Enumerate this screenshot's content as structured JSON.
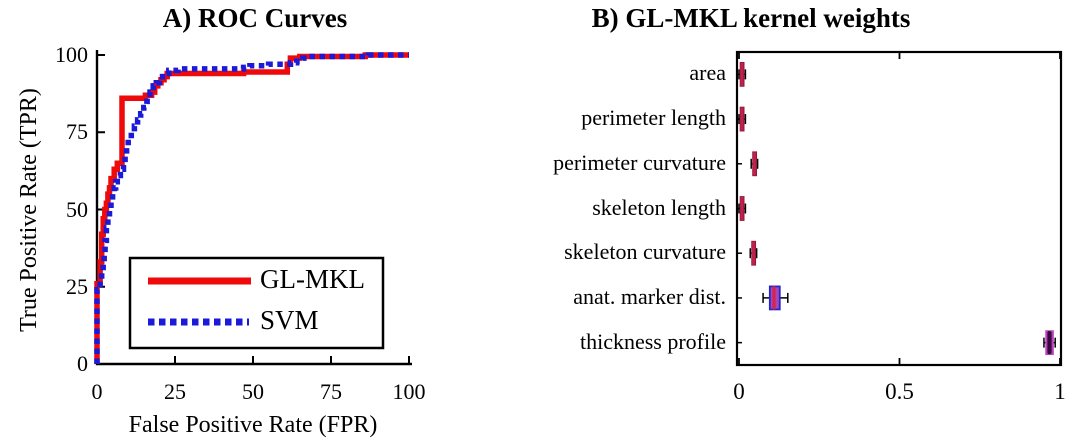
{
  "chart_data": [
    {
      "id": "roc",
      "type": "line",
      "title": "A) ROC Curves",
      "xlabel": "False Positive Rate (FPR)",
      "ylabel": "True Positive Rate (TPR)",
      "xlim": [
        0,
        100
      ],
      "ylim": [
        0,
        100
      ],
      "xticks": [
        "0",
        "25",
        "50",
        "75",
        "100"
      ],
      "yticks": [
        "0",
        "25",
        "50",
        "75",
        "100"
      ],
      "xtick_values": [
        0,
        25,
        50,
        75,
        100
      ],
      "ytick_values": [
        0,
        25,
        50,
        75,
        100
      ],
      "grid": false,
      "legend_position": "inside-lower-middle",
      "series": [
        {
          "name": "GL-MKL",
          "color": "#ee0a0a",
          "style": "solid",
          "points": [
            [
              0,
              0
            ],
            [
              0,
              26
            ],
            [
              1,
              26
            ],
            [
              1,
              33
            ],
            [
              1.5,
              33
            ],
            [
              1.5,
              42
            ],
            [
              2,
              42
            ],
            [
              2,
              47
            ],
            [
              2.5,
              47
            ],
            [
              2.5,
              50
            ],
            [
              3,
              50
            ],
            [
              3,
              52
            ],
            [
              3.5,
              52
            ],
            [
              3.5,
              55
            ],
            [
              4,
              55
            ],
            [
              4,
              57
            ],
            [
              4.5,
              57
            ],
            [
              4.5,
              60
            ],
            [
              5.5,
              60
            ],
            [
              5.5,
              63
            ],
            [
              6.5,
              63
            ],
            [
              6.5,
              65
            ],
            [
              8,
              65
            ],
            [
              8,
              86
            ],
            [
              15.5,
              86
            ],
            [
              15.5,
              87
            ],
            [
              17.5,
              87
            ],
            [
              17.5,
              88
            ],
            [
              18.5,
              88
            ],
            [
              18.5,
              90
            ],
            [
              19.5,
              90
            ],
            [
              19.5,
              91
            ],
            [
              20.5,
              91
            ],
            [
              20.5,
              92
            ],
            [
              21.5,
              92
            ],
            [
              21.5,
              93
            ],
            [
              22.5,
              93
            ],
            [
              22.5,
              94
            ],
            [
              47,
              94
            ],
            [
              47,
              94.5
            ],
            [
              61,
              94.5
            ],
            [
              61,
              97
            ],
            [
              62,
              97
            ],
            [
              62,
              99
            ],
            [
              65,
              99
            ],
            [
              65,
              99.5
            ],
            [
              86,
              99.5
            ],
            [
              86,
              100
            ],
            [
              100,
              100
            ]
          ]
        },
        {
          "name": "SVM",
          "color": "#1a1ad8",
          "style": "dotted",
          "points": [
            [
              0,
              0
            ],
            [
              0,
              24
            ],
            [
              1,
              24
            ],
            [
              1,
              27
            ],
            [
              1.5,
              27
            ],
            [
              1.5,
              30
            ],
            [
              2,
              30
            ],
            [
              2,
              33
            ],
            [
              2.3,
              33
            ],
            [
              2.3,
              36
            ],
            [
              2.6,
              36
            ],
            [
              2.6,
              40
            ],
            [
              3,
              40
            ],
            [
              3,
              44
            ],
            [
              3.5,
              44
            ],
            [
              3.5,
              47
            ],
            [
              4,
              47
            ],
            [
              4,
              50
            ],
            [
              4.5,
              50
            ],
            [
              4.5,
              53
            ],
            [
              5,
              53
            ],
            [
              5,
              55
            ],
            [
              5.5,
              55
            ],
            [
              5.5,
              57
            ],
            [
              6,
              57
            ],
            [
              6,
              59
            ],
            [
              6.5,
              59
            ],
            [
              6.5,
              61
            ],
            [
              7.5,
              61
            ],
            [
              7.5,
              63
            ],
            [
              8.5,
              63
            ],
            [
              8.5,
              65
            ],
            [
              9,
              65
            ],
            [
              9,
              68
            ],
            [
              9.5,
              68
            ],
            [
              9.5,
              70
            ],
            [
              10,
              70
            ],
            [
              10,
              73
            ],
            [
              11,
              73
            ],
            [
              11,
              75
            ],
            [
              12,
              75
            ],
            [
              12,
              77
            ],
            [
              13,
              77
            ],
            [
              13,
              79
            ],
            [
              14,
              79
            ],
            [
              14,
              81
            ],
            [
              15,
              81
            ],
            [
              15,
              83
            ],
            [
              16,
              83
            ],
            [
              16,
              85
            ],
            [
              17,
              85
            ],
            [
              17,
              88
            ],
            [
              18,
              88
            ],
            [
              18,
              90
            ],
            [
              19,
              90
            ],
            [
              19,
              91
            ],
            [
              20,
              91
            ],
            [
              20,
              92
            ],
            [
              21,
              92
            ],
            [
              21,
              93
            ],
            [
              22,
              93
            ],
            [
              22,
              94
            ],
            [
              23,
              94
            ],
            [
              23,
              95
            ],
            [
              26,
              95
            ],
            [
              26,
              95.5
            ],
            [
              47,
              95.5
            ],
            [
              47,
              96
            ],
            [
              49,
              96
            ],
            [
              49,
              96.5
            ],
            [
              55,
              96.5
            ],
            [
              55,
              97
            ],
            [
              62,
              97
            ],
            [
              62,
              97.5
            ],
            [
              64,
              97.5
            ],
            [
              64,
              98
            ],
            [
              66,
              98
            ],
            [
              66,
              99
            ],
            [
              68,
              99
            ],
            [
              68,
              99.5
            ],
            [
              87,
              99.5
            ],
            [
              87,
              100
            ],
            [
              100,
              100
            ]
          ]
        }
      ]
    },
    {
      "id": "kernel-weights",
      "type": "boxplot-horizontal",
      "title": "B) GL-MKL kernel weights",
      "xlabel": "",
      "xlim": [
        0,
        1
      ],
      "xticks": [
        "0",
        "0.5",
        "1"
      ],
      "xtick_values": [
        0,
        0.5,
        1
      ],
      "grid": false,
      "categories": [
        "area",
        "perimeter length",
        "perimeter curvature",
        "skeleton length",
        "skeleton curvature",
        "anat. marker dist.",
        "thickness profile"
      ],
      "boxes": [
        {
          "label": "area",
          "whisker_low": 0.0,
          "q1": 0.005,
          "median": 0.009,
          "q3": 0.014,
          "whisker_high": 0.02,
          "fill": "#c8406e",
          "stroke": "#8d1b40",
          "median_color": "#c0204a"
        },
        {
          "label": "perimeter length",
          "whisker_low": 0.0,
          "q1": 0.005,
          "median": 0.009,
          "q3": 0.014,
          "whisker_high": 0.02,
          "fill": "#c8406e",
          "stroke": "#8d1b40",
          "median_color": "#c0204a"
        },
        {
          "label": "perimeter curvature",
          "whisker_low": 0.038,
          "q1": 0.044,
          "median": 0.048,
          "q3": 0.052,
          "whisker_high": 0.058,
          "fill": "#c8406e",
          "stroke": "#8d1b40",
          "median_color": "#c0204a"
        },
        {
          "label": "skeleton length",
          "whisker_low": 0.0,
          "q1": 0.005,
          "median": 0.009,
          "q3": 0.014,
          "whisker_high": 0.02,
          "fill": "#c8406e",
          "stroke": "#8d1b40",
          "median_color": "#c0204a"
        },
        {
          "label": "skeleton curvature",
          "whisker_low": 0.035,
          "q1": 0.041,
          "median": 0.045,
          "q3": 0.049,
          "whisker_high": 0.055,
          "fill": "#c8406e",
          "stroke": "#8d1b40",
          "median_color": "#c0204a"
        },
        {
          "label": "anat. marker dist.",
          "whisker_low": 0.075,
          "q1": 0.096,
          "median": 0.109,
          "q3": 0.127,
          "whisker_high": 0.152,
          "fill": "#a845b8",
          "stroke": "#2428cc",
          "median_color": "#d42545"
        },
        {
          "label": "thickness profile",
          "whisker_low": 0.95,
          "q1": 0.957,
          "median": 0.967,
          "q3": 0.978,
          "whisker_high": 0.985,
          "fill": "#731677",
          "stroke": "#b843bb",
          "median_color": "#330a36"
        }
      ]
    }
  ],
  "colors": {
    "axis": "#000000",
    "background": "#ffffff",
    "glmkl_red": "#ee0a0a",
    "svm_blue": "#1a1ad8"
  }
}
